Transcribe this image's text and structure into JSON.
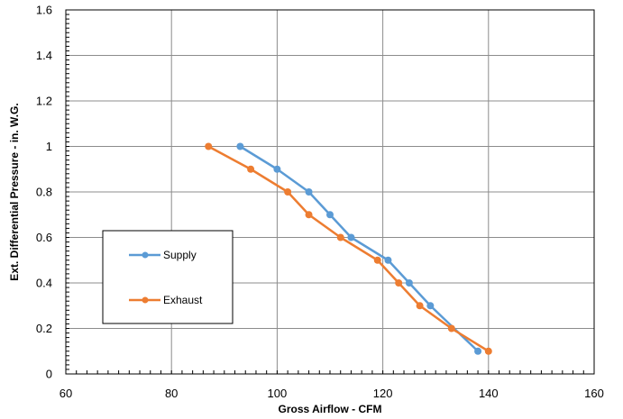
{
  "chart_data": {
    "type": "line",
    "xlabel": "Gross Airflow - CFM",
    "ylabel": "Ext. Differential Pressure - in. W.G.",
    "xlim": [
      60,
      160
    ],
    "ylim": [
      0,
      1.6
    ],
    "x_ticks": [
      "60",
      "80",
      "100",
      "120",
      "140",
      "160"
    ],
    "y_ticks": [
      "0",
      "0.2",
      "0.4",
      "0.6",
      "0.8",
      "1",
      "1.2",
      "1.4",
      "1.6"
    ],
    "grid": true,
    "legend_placement": "left",
    "series": [
      {
        "name": "Supply",
        "color": "#5b9bd5",
        "x": [
          93,
          100,
          106,
          110,
          114,
          121,
          125,
          129,
          138
        ],
        "y": [
          1.0,
          0.9,
          0.8,
          0.7,
          0.6,
          0.5,
          0.4,
          0.3,
          0.1
        ]
      },
      {
        "name": "Exhaust",
        "color": "#ed7d31",
        "x": [
          87,
          95,
          102,
          106,
          112,
          119,
          123,
          127,
          133,
          140
        ],
        "y": [
          1.0,
          0.9,
          0.8,
          0.7,
          0.6,
          0.5,
          0.4,
          0.3,
          0.2,
          0.1
        ]
      }
    ]
  }
}
